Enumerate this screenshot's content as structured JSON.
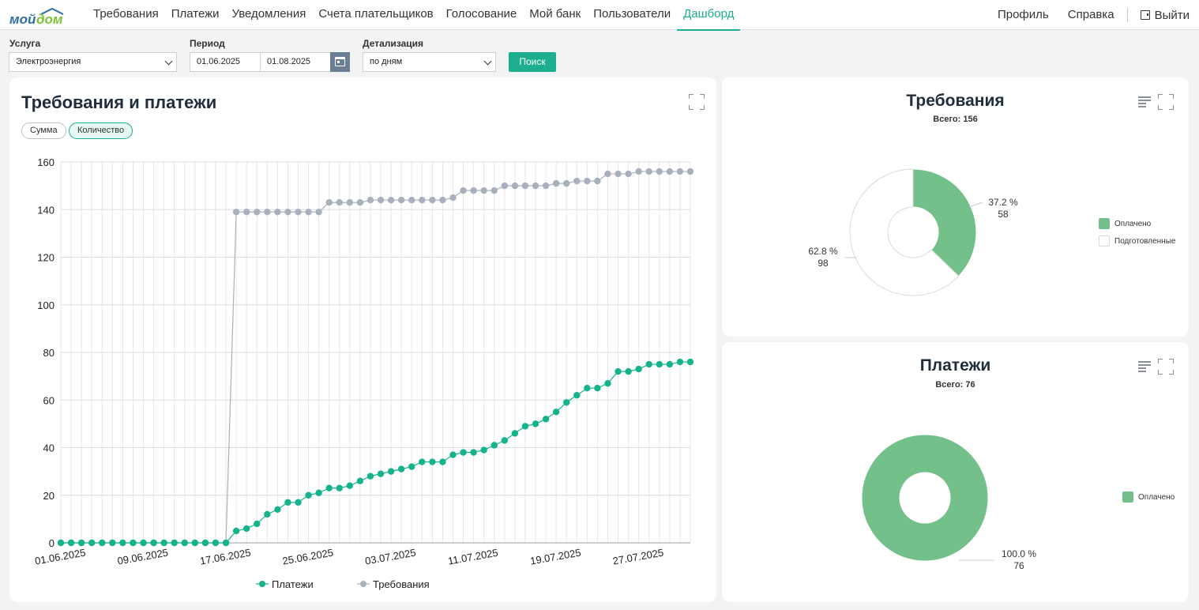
{
  "nav": {
    "items": [
      "Требования",
      "Платежи",
      "Уведомления",
      "Счета плательщиков",
      "Голосование",
      "Мой банк",
      "Пользователи",
      "Дашборд"
    ],
    "active_index": 7,
    "profile": "Профиль",
    "help": "Справка",
    "logout": "Выйти"
  },
  "filters": {
    "service_label": "Услуга",
    "service_value": "Электроэнергия",
    "period_label": "Период",
    "date_from": "01.06.2025",
    "date_to": "01.08.2025",
    "detail_label": "Детализация",
    "detail_value": "по дням",
    "search_button": "Поиск"
  },
  "colors": {
    "accent": "#1cae8e",
    "paid": "#74c08a",
    "requests_line": "#a9b0bd",
    "payments_line": "#14b38b"
  },
  "main_panel": {
    "title": "Требования и платежи",
    "toggle_sum": "Сумма",
    "toggle_count": "Количество",
    "active_toggle": "Количество"
  },
  "chart_data": [
    {
      "type": "line",
      "title": "Требования и платежи",
      "x_tick_labels": [
        "01.06.2025",
        "09.06.2025",
        "17.06.2025",
        "25.06.2025",
        "03.07.2025",
        "11.07.2025",
        "19.07.2025",
        "27.07.2025"
      ],
      "x_start_date": "01.06.2025",
      "ylim": [
        0,
        160
      ],
      "y_ticks": [
        0,
        20,
        40,
        60,
        80,
        100,
        120,
        140,
        160
      ],
      "grid": true,
      "legend": "bottom",
      "series": [
        {
          "name": "Платежи",
          "values": [
            0,
            0,
            0,
            0,
            0,
            0,
            0,
            0,
            0,
            0,
            0,
            0,
            0,
            0,
            0,
            0,
            0,
            5,
            6,
            8,
            12,
            14,
            17,
            17,
            20,
            21,
            23,
            23,
            24,
            26,
            28,
            29,
            30,
            31,
            32,
            34,
            34,
            34,
            37,
            38,
            38,
            39,
            41,
            43,
            46,
            49,
            50,
            52,
            55,
            59,
            62,
            65,
            65,
            67,
            72,
            72,
            73,
            75,
            75,
            75,
            76,
            76
          ]
        },
        {
          "name": "Требования",
          "values": [
            0,
            0,
            0,
            0,
            0,
            0,
            0,
            0,
            0,
            0,
            0,
            0,
            0,
            0,
            0,
            0,
            0,
            139,
            139,
            139,
            139,
            139,
            139,
            139,
            139,
            139,
            143,
            143,
            143,
            143,
            144,
            144,
            144,
            144,
            144,
            144,
            144,
            144,
            145,
            148,
            148,
            148,
            148,
            150,
            150,
            150,
            150,
            150,
            151,
            151,
            152,
            152,
            152,
            155,
            155,
            155,
            156,
            156,
            156,
            156,
            156,
            156
          ]
        }
      ]
    },
    {
      "type": "pie",
      "title": "Требования",
      "subtitle": "Всего: 156",
      "slices": [
        {
          "name": "Оплачено",
          "value": 58,
          "percent": "37.2 %"
        },
        {
          "name": "Подготовленные",
          "value": 98,
          "percent": "62.8 %"
        }
      ]
    },
    {
      "type": "pie",
      "title": "Платежи",
      "subtitle": "Всего: 76",
      "slices": [
        {
          "name": "Оплачено",
          "value": 76,
          "percent": "100.0 %"
        }
      ]
    }
  ]
}
